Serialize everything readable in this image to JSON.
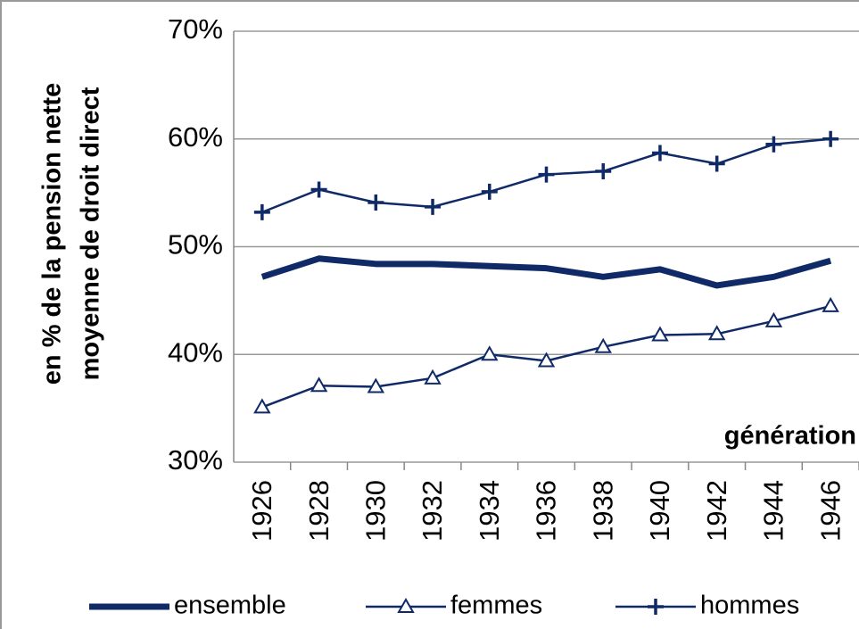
{
  "chart_data": {
    "type": "line",
    "y_label": [
      "en % de la pension nette",
      "moyenne de droit direct"
    ],
    "x_label": "génération",
    "categories": [
      "1926",
      "1928",
      "1930",
      "1932",
      "1934",
      "1936",
      "1938",
      "1940",
      "1942",
      "1944",
      "1946"
    ],
    "series": [
      {
        "name": "ensemble",
        "color": "#0f2a66",
        "values": [
          47.2,
          48.9,
          48.4,
          48.4,
          48.2,
          48.0,
          47.2,
          47.9,
          46.4,
          47.2,
          48.7
        ]
      },
      {
        "name": "femmes",
        "color": "#0f2a66",
        "marker": "triangle",
        "values": [
          35.1,
          37.1,
          37.0,
          37.8,
          40.0,
          39.4,
          40.7,
          41.8,
          41.9,
          43.1,
          44.5
        ]
      },
      {
        "name": "hommes",
        "color": "#0f2a66",
        "marker": "plus",
        "values": [
          53.2,
          55.3,
          54.1,
          53.7,
          55.1,
          56.7,
          57.0,
          58.7,
          57.7,
          59.5,
          60.0
        ]
      }
    ],
    "ylim": [
      30,
      70
    ],
    "yticks": [
      {
        "value": 30,
        "label": "30%"
      },
      {
        "value": 40,
        "label": "40%"
      },
      {
        "value": 50,
        "label": "50%"
      },
      {
        "value": 60,
        "label": "60%"
      },
      {
        "value": 70,
        "label": "70%"
      }
    ],
    "grid": true
  }
}
